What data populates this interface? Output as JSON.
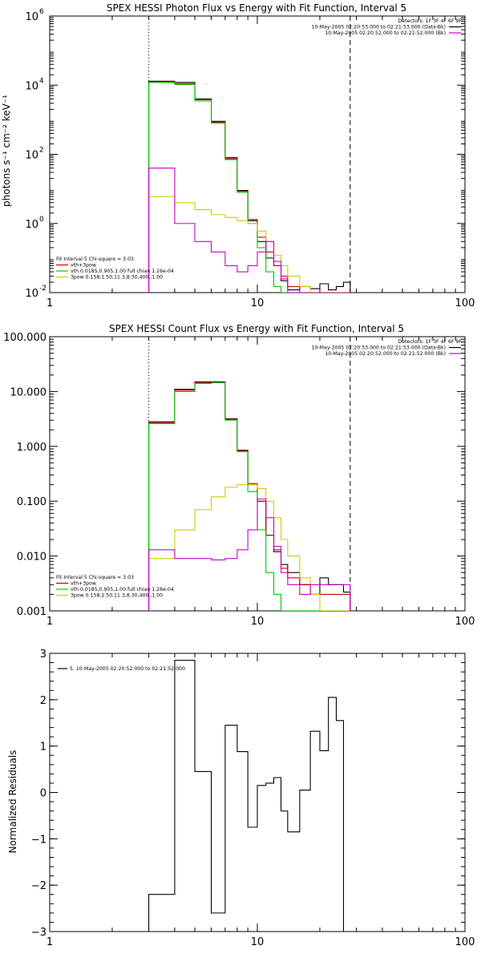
{
  "chart_data": [
    {
      "type": "line",
      "title": "SPEX HESSI Photon Flux vs Energy with Fit Function, Interval 5",
      "xlabel": "",
      "ylabel": "photons s⁻¹ cm⁻² keV⁻¹",
      "xscale": "log",
      "yscale": "log",
      "xlim": [
        1,
        100
      ],
      "ylim": [
        0.01,
        1000000
      ],
      "xticks": [
        {
          "v": 1,
          "label": "1"
        },
        {
          "v": 10,
          "label": "10"
        },
        {
          "v": 100,
          "label": "100"
        }
      ],
      "yticks": [
        {
          "v": 0.01,
          "label": "10",
          "exp": "-2"
        },
        {
          "v": 1,
          "label": "10",
          "exp": "0"
        },
        {
          "v": 100,
          "label": "10",
          "exp": "2"
        },
        {
          "v": 10000,
          "label": "10",
          "exp": "4"
        },
        {
          "v": 1000000,
          "label": "10",
          "exp": "6"
        }
      ],
      "vlines": [
        {
          "x": 3,
          "style": "dotted"
        },
        {
          "x": 28,
          "style": "dashed"
        }
      ],
      "legend_top": [
        {
          "text": "Detectors: 1F 3F 4F 6F 9F",
          "color": ""
        },
        {
          "text": "10-May-2005 02:20:53.000 to 02:21:53.000 (Data-Bk)",
          "color": "#000000"
        },
        {
          "text": "10-May-2005 02:20:52.000 to 02:21:52.000 (Bk)",
          "color": "#cc00cc"
        }
      ],
      "legend_bottom": [
        {
          "text": "Fit Interval 5   Chi-square = 3.03",
          "color": ""
        },
        {
          "text": "vth+3pow",
          "color": "#cc0000"
        },
        {
          "text": "vth 0.0185,0.905,1.00  full chian 1.26e-04",
          "color": "#00cc00"
        },
        {
          "text": "3pow 0.158,1.50,11.3,8.30,400.,1.00",
          "color": "#cccc00"
        }
      ],
      "edges": [
        3,
        4,
        5,
        6,
        7,
        8,
        9,
        10,
        11,
        12,
        13,
        14,
        16,
        18,
        20,
        22,
        24,
        26,
        28
      ],
      "series": [
        {
          "color": "#000000",
          "values": [
            13000,
            12000,
            4000,
            900,
            80,
            9,
            1.2,
            0.3,
            0.1,
            0.06,
            0.022,
            0.012,
            0.015,
            0.013,
            0.018,
            0.012,
            0.015,
            0.02
          ]
        },
        {
          "color": "#cc0000",
          "values": [
            12500,
            11000,
            3800,
            850,
            75,
            8.5,
            1.3,
            0.4,
            0.15,
            0.06,
            0.03,
            0.015,
            0.01,
            0.01,
            0.01,
            0.01,
            0.01,
            0.01
          ]
        },
        {
          "color": "#00cc00",
          "values": [
            12000,
            10500,
            3500,
            800,
            70,
            8,
            1.0,
            0.2,
            0.04,
            0.015,
            0.01,
            0.01,
            0.01,
            0.01,
            0.01,
            0.01,
            0.01,
            0.01
          ]
        },
        {
          "color": "#cccc00",
          "values": [
            6,
            4,
            2.5,
            1.8,
            1.5,
            1.2,
            1.0,
            0.6,
            0.3,
            0.12,
            0.06,
            0.03,
            0.015,
            0.01,
            0.01,
            0.01,
            0.01,
            0.01
          ]
        },
        {
          "color": "#cc00cc",
          "values": [
            40,
            1,
            0.3,
            0.15,
            0.06,
            0.04,
            0.06,
            0.15,
            0.3,
            0.08,
            0.025,
            0.01,
            0.01,
            0.01,
            0.01,
            0.01,
            0.01,
            0.01
          ]
        }
      ]
    },
    {
      "type": "line",
      "title": "SPEX HESSI Count Flux vs Energy with Fit Function, Interval 5",
      "xlabel": "",
      "ylabel": "",
      "xscale": "log",
      "yscale": "log",
      "xlim": [
        1,
        100
      ],
      "ylim": [
        0.001,
        100
      ],
      "xticks": [
        {
          "v": 1,
          "label": "1"
        },
        {
          "v": 10,
          "label": "10"
        },
        {
          "v": 100,
          "label": "100"
        }
      ],
      "yticks": [
        {
          "v": 0.001,
          "label": "0.001"
        },
        {
          "v": 0.01,
          "label": "0.010"
        },
        {
          "v": 0.1,
          "label": "0.100"
        },
        {
          "v": 1,
          "label": "1.000"
        },
        {
          "v": 10,
          "label": "10.000"
        },
        {
          "v": 100,
          "label": "100.000"
        }
      ],
      "vlines": [
        {
          "x": 3,
          "style": "dotted"
        },
        {
          "x": 28,
          "style": "dashed"
        }
      ],
      "legend_top": [
        {
          "text": "Detectors: 1F 3F 4F 6F 9F",
          "color": ""
        },
        {
          "text": "10-May-2005 02:20:53.000 to 02:21:53.000 (Data-Bk)",
          "color": "#000000"
        },
        {
          "text": "10-May-2005 02:20:52.000 to 02:21:52.000 (Bk)",
          "color": "#cc00cc"
        }
      ],
      "legend_bottom": [
        {
          "text": "Fit Interval 5   Chi-square = 3.03",
          "color": ""
        },
        {
          "text": "vth+3pow",
          "color": "#cc0000"
        },
        {
          "text": "vth 0.0185,0.905,1.00  full chian 1.26e-04",
          "color": "#00cc00"
        },
        {
          "text": "3pow 0.158,1.50,11.3,8.30,400.,1.00",
          "color": "#cccc00"
        }
      ],
      "edges": [
        3,
        4,
        5,
        6,
        7,
        8,
        9,
        10,
        11,
        12,
        13,
        14,
        16,
        18,
        20,
        22,
        24,
        26,
        28
      ],
      "series": [
        {
          "color": "#000000",
          "values": [
            2.8,
            11,
            15,
            15,
            3.2,
            0.85,
            0.2,
            0.1,
            0.024,
            0.012,
            0.007,
            0.005,
            0.003,
            0.002,
            0.004,
            0.003,
            0.003,
            0.0022
          ]
        },
        {
          "color": "#cc0000",
          "values": [
            2.7,
            10.5,
            14.5,
            14.5,
            3.1,
            0.82,
            0.21,
            0.1,
            0.024,
            0.013,
            0.006,
            0.004,
            0.003,
            0.002,
            0.002,
            0.002,
            0.002,
            0.002
          ]
        },
        {
          "color": "#00cc00",
          "values": [
            2.6,
            10,
            14,
            14.5,
            3.0,
            0.8,
            0.15,
            0.03,
            0.005,
            0.002,
            0.001,
            0.001,
            0.001,
            0.001,
            0.001,
            0.001,
            0.001,
            0.001
          ]
        },
        {
          "color": "#cccc00",
          "values": [
            0.009,
            0.03,
            0.07,
            0.12,
            0.18,
            0.2,
            0.2,
            0.17,
            0.1,
            0.05,
            0.02,
            0.01,
            0.004,
            0.002,
            0.001,
            0.001,
            0.001,
            0.001
          ]
        },
        {
          "color": "#cc00cc",
          "values": [
            0.013,
            0.009,
            0.009,
            0.0085,
            0.009,
            0.013,
            0.03,
            0.11,
            0.05,
            0.015,
            0.005,
            0.003,
            0.002,
            0.003,
            0.003,
            0.003,
            0.003,
            0.003
          ]
        }
      ]
    },
    {
      "type": "line",
      "title": "",
      "xlabel": "",
      "ylabel": "Normalized Residuals",
      "xscale": "log",
      "yscale": "linear",
      "xlim": [
        1,
        100
      ],
      "ylim": [
        -3,
        3
      ],
      "xticks": [
        {
          "v": 1,
          "label": "1"
        },
        {
          "v": 10,
          "label": "10"
        },
        {
          "v": 100,
          "label": "100"
        }
      ],
      "yticks": [
        {
          "v": -3,
          "label": "−3"
        },
        {
          "v": -2,
          "label": "−2"
        },
        {
          "v": -1,
          "label": "−1"
        },
        {
          "v": 0,
          "label": "0"
        },
        {
          "v": 1,
          "label": "1"
        },
        {
          "v": 2,
          "label": "2"
        },
        {
          "v": 3,
          "label": "3"
        }
      ],
      "vlines": [],
      "legend_top": [],
      "legend_bottom": [],
      "legend_line": {
        "text": "5. 10-May-2005 02:20:52.000 to 02:21:52.000",
        "color": "#000000"
      },
      "edges": [
        3,
        4,
        5,
        6,
        7,
        8,
        9,
        10,
        11,
        12,
        13,
        14,
        16,
        18,
        20,
        22,
        24,
        26,
        28
      ],
      "series": [
        {
          "color": "#000000",
          "values": [
            -2.2,
            2.85,
            0.45,
            -2.6,
            1.45,
            0.88,
            -0.75,
            0.15,
            0.2,
            0.32,
            -0.4,
            -0.85,
            0.05,
            1.32,
            0.9,
            2.05,
            1.55,
            -3.0
          ]
        }
      ]
    }
  ]
}
